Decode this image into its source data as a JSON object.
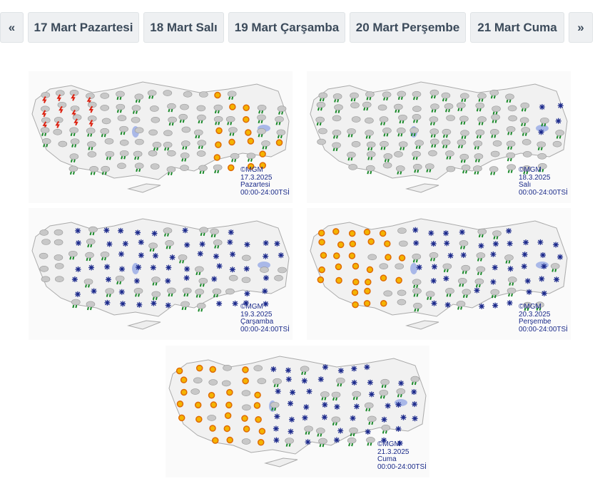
{
  "tabs": [
    "«",
    "17 Mart Pazartesi",
    "18 Mart Salı",
    "19 Mart Çarşamba",
    "20 Mart Perşembe",
    "21 Mart Cuma",
    "»"
  ],
  "maps": [
    {
      "caption": [
        "©MGM",
        "17.3.2025",
        "Pazartesi",
        "00:00-24:00TSİ"
      ]
    },
    {
      "caption": [
        "©MGM",
        "18.3.2025",
        "Salı",
        "00:00-24:00TSİ"
      ]
    },
    {
      "caption": [
        "©MGM",
        "19.3.2025",
        "Çarşamba",
        "00:00-24:00TSİ"
      ]
    },
    {
      "caption": [
        "©MGM",
        "20.3.2025",
        "Perşembe",
        "00:00-24:00TSİ"
      ]
    },
    {
      "caption": [
        "©MGM",
        "21.3.2025",
        "Cuma",
        "00:00-24:00TSİ"
      ]
    }
  ]
}
